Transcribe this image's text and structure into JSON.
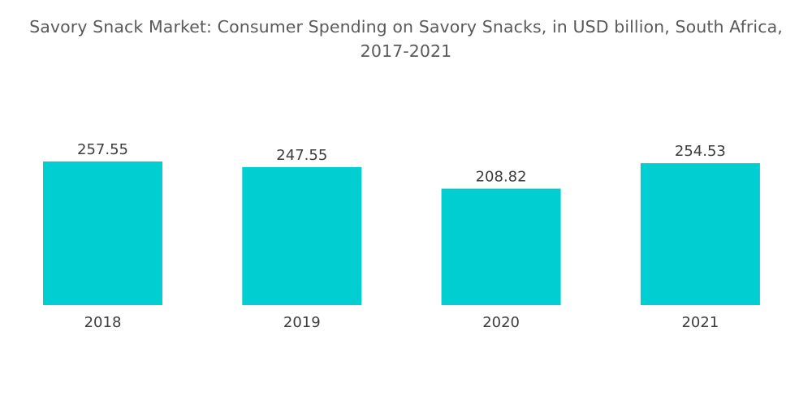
{
  "chart_data": {
    "type": "bar",
    "title_line1": "Savory Snack Market: Consumer Spending on Savory Snacks, in USD billion, South Africa,",
    "title_line2": "2017-2021",
    "categories": [
      "2018",
      "2019",
      "2020",
      "2021"
    ],
    "values": [
      257.55,
      247.55,
      208.82,
      254.53
    ],
    "value_labels": [
      "257.55",
      "247.55",
      "208.82",
      "254.53"
    ],
    "xlabel": "",
    "ylabel": "",
    "ylim": [
      0,
      257.55
    ],
    "grid": false,
    "legend": "none",
    "bar_color": "#00ced1"
  }
}
